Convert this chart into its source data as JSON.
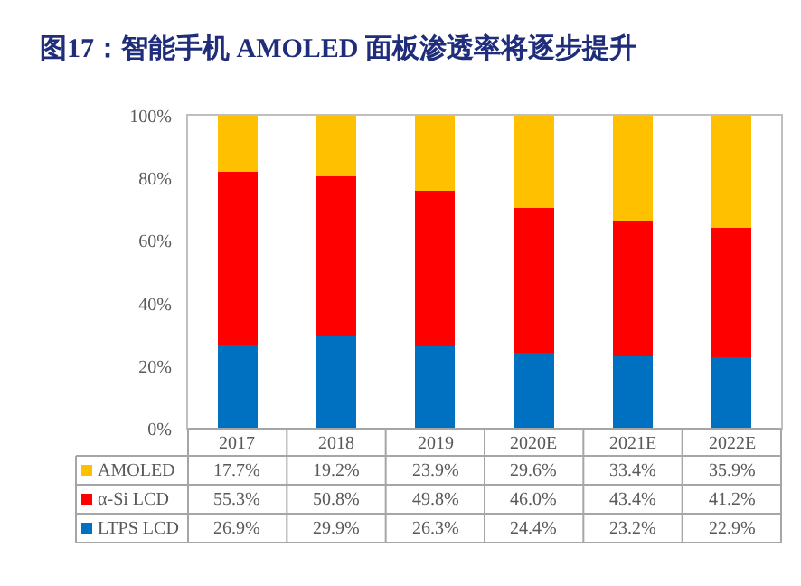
{
  "chart_data": {
    "type": "bar",
    "stacked": true,
    "title": "图17：智能手机 AMOLED 面板渗透率将逐步提升",
    "categories": [
      "2017",
      "2018",
      "2019",
      "2020E",
      "2021E",
      "2022E"
    ],
    "series": [
      {
        "name": "LTPS LCD",
        "color": "#0070c0",
        "values": [
          26.9,
          29.9,
          26.3,
          24.4,
          23.2,
          22.9
        ],
        "value_labels": [
          "26.9%",
          "29.9%",
          "26.3%",
          "24.4%",
          "23.2%",
          "22.9%"
        ]
      },
      {
        "name": "α-Si LCD",
        "color": "#ff0000",
        "values": [
          55.3,
          50.8,
          49.8,
          46.0,
          43.4,
          41.2
        ],
        "value_labels": [
          "55.3%",
          "50.8%",
          "49.8%",
          "46.0%",
          "43.4%",
          "41.2%"
        ]
      },
      {
        "name": "AMOLED",
        "color": "#ffc000",
        "values": [
          17.7,
          19.2,
          23.9,
          29.6,
          33.4,
          35.9
        ],
        "value_labels": [
          "17.7%",
          "19.2%",
          "23.9%",
          "29.6%",
          "33.4%",
          "35.9%"
        ]
      }
    ],
    "ylim": [
      0,
      100
    ],
    "yticks": [
      {
        "value": 0,
        "label": "0%"
      },
      {
        "value": 20,
        "label": "20%"
      },
      {
        "value": 40,
        "label": "40%"
      },
      {
        "value": 60,
        "label": "60%"
      },
      {
        "value": 80,
        "label": "80%"
      },
      {
        "value": 100,
        "label": "100%"
      }
    ],
    "grid": false,
    "legend": "bottom left"
  }
}
